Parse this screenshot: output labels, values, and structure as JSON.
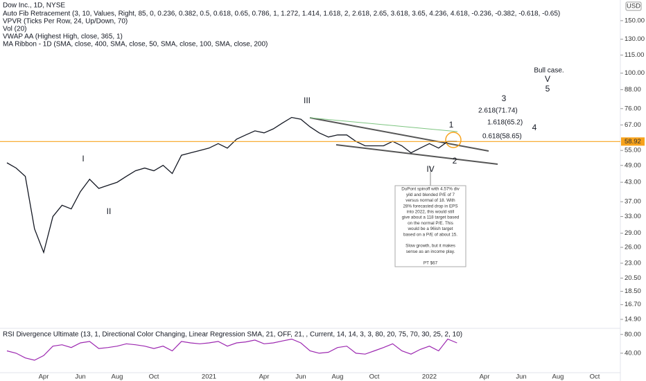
{
  "header": {
    "title": "Dow Inc., 1D, NYSE",
    "indicators": [
      "Auto Fib Retracement (3, 10, Values, Right, 85, 0, 0.236, 0.382, 0.5, 0.618, 0.65, 0.786, 1, 1.272, 1.414, 1.618, 2, 2.618, 2.65, 3.618, 3.65, 4.236, 4.618, -0.236, -0.382, -0.618, -0.65)",
      "VPVR (Ticks Per Row, 24, Up/Down, 70)",
      "Vol (20)",
      "VWAP AA (Highest High, close, 365, 1)",
      "MA Ribbon - 1D (SMA, close, 400, SMA, close, 50, SMA, close, 100, SMA, close, 200)"
    ],
    "currency": "USD"
  },
  "annotations": {
    "waves": [
      "I",
      "II",
      "III",
      "IV",
      "V",
      "1",
      "2",
      "3",
      "4",
      "5"
    ],
    "bull": "Bull case.",
    "fib": [
      "2.618(71.74)",
      "1.618(65.2)",
      "0.618(58.65)"
    ],
    "note": [
      "DuPont spinoff with 4.57% div",
      "yild and blended P/E of 7",
      "versus normal of 18.  With",
      "28% forecasted drop in EPS",
      "into 2022, this would still",
      "give about a 118 target based",
      "on the normal P/E.  This",
      "would be a 96ish target",
      "based on a P/E of about 15.",
      "",
      "Slow growth, but it makes",
      "sense as an income play.",
      "",
      "PT $67"
    ]
  },
  "chart_data": [
    {
      "type": "line",
      "log_scale": true,
      "color": "#131722",
      "line_color": "#f7a21b",
      "categories": [
        null,
        null,
        null,
        null,
        "Apr",
        null,
        null,
        null,
        "Jun",
        null,
        null,
        null,
        "Aug",
        null,
        null,
        null,
        "Oct",
        null,
        null,
        null,
        null,
        null,
        "2021",
        null,
        null,
        null,
        null,
        null,
        "Apr",
        null,
        null,
        null,
        "Jun",
        null,
        null,
        null,
        "Aug",
        null,
        null,
        null,
        "Oct",
        null,
        null,
        null,
        null,
        null,
        "2022",
        null,
        null,
        null,
        null,
        null,
        "Apr",
        null,
        null,
        null,
        "Jun",
        null,
        null,
        null,
        "Aug",
        null,
        null,
        null,
        "Oct",
        null
      ],
      "values": [
        50,
        48,
        45,
        30,
        25,
        33,
        36,
        35,
        40,
        44,
        41,
        42,
        43,
        45,
        47,
        48,
        47,
        49,
        46,
        53,
        54,
        55,
        56,
        58,
        56,
        60,
        62,
        64,
        63,
        65,
        68,
        71,
        70,
        66,
        63,
        61,
        62,
        62,
        59,
        57,
        57,
        57,
        59,
        57,
        54,
        56,
        58,
        56,
        59,
        58.92,
        null,
        null,
        null,
        null,
        null,
        null,
        null,
        null,
        null,
        null,
        null,
        null,
        null,
        null,
        null,
        null
      ],
      "ylim": [
        14.2,
        176
      ],
      "yticks": [
        {
          "value": 150,
          "label": "150.00"
        },
        {
          "value": 130,
          "label": "130.00"
        },
        {
          "value": 115,
          "label": "115.00"
        },
        {
          "value": 100,
          "label": "100.00"
        },
        {
          "value": 88,
          "label": "88.00"
        },
        {
          "value": 76,
          "label": "76.00"
        },
        {
          "value": 67,
          "label": "67.00"
        },
        {
          "value": 55,
          "label": "55.00"
        },
        {
          "value": 49,
          "label": "49.00"
        },
        {
          "value": 43,
          "label": "43.00"
        },
        {
          "value": 37,
          "label": "37.00"
        },
        {
          "value": 33,
          "label": "33.00"
        },
        {
          "value": 29,
          "label": "29.00"
        },
        {
          "value": 26,
          "label": "26.00"
        },
        {
          "value": 23,
          "label": "23.00"
        },
        {
          "value": 20.5,
          "label": "20.50"
        },
        {
          "value": 18.5,
          "label": "18.50"
        },
        {
          "value": 16.7,
          "label": "16.70"
        },
        {
          "value": 14.9,
          "label": "14.90"
        }
      ]
    },
    {
      "type": "line",
      "title": "RSI Divergence Ultimate (13, 1, Directional Color Changing, Linear Regression SMA, 21, OFF, 21, , Current, 14, 14, 3, 3, 80, 20, 75, 70, 30, 25, 2, 10)",
      "color": "#9c27b0",
      "values": [
        45,
        40,
        30,
        25,
        35,
        55,
        58,
        52,
        62,
        65,
        50,
        52,
        55,
        60,
        58,
        55,
        50,
        55,
        45,
        65,
        62,
        60,
        62,
        65,
        55,
        62,
        64,
        68,
        60,
        62,
        66,
        70,
        62,
        45,
        40,
        42,
        52,
        55,
        40,
        38,
        45,
        52,
        60,
        45,
        38,
        48,
        55,
        45,
        70,
        62,
        null,
        null,
        null,
        null,
        null,
        null,
        null,
        null,
        null,
        null,
        null,
        null,
        null,
        null,
        null,
        null
      ],
      "ylim": [
        0,
        87
      ],
      "yticks": [
        {
          "value": 80,
          "label": "80.00"
        },
        {
          "value": 40,
          "label": "40.00"
        }
      ]
    }
  ]
}
